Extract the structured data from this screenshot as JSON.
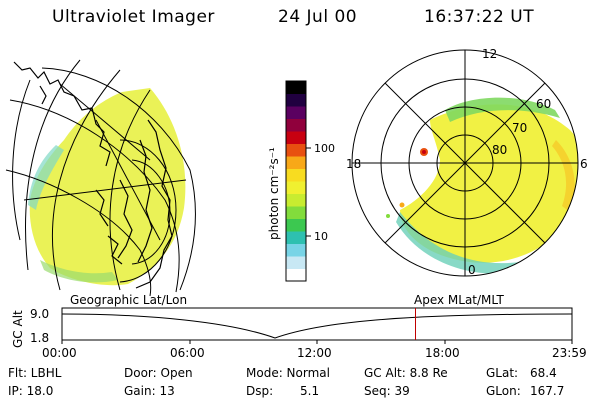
{
  "header": {
    "instrument": "Ultraviolet Imager",
    "date": "24 Jul 00",
    "time": "16:37:22 UT"
  },
  "colorbar": {
    "unit_label": "photon cm⁻²s⁻¹",
    "ticks": [
      "100",
      "10"
    ]
  },
  "polar_plot": {
    "mlt_labels": [
      "12",
      "18",
      "6",
      "0"
    ],
    "lat_labels": [
      "60",
      "70",
      "80"
    ]
  },
  "panel_labels": {
    "left": "Geographic Lat/Lon",
    "right": "Apex MLat/MLT"
  },
  "altitude_plot": {
    "axis_label": "GC Alt",
    "y_ticks": [
      "9.0",
      "1.8"
    ],
    "x_ticks": [
      "00:00",
      "06:00",
      "12:00",
      "18:00",
      "23:59"
    ],
    "current_time_marker": "16:37:22"
  },
  "status": {
    "filter": "Flt: LBHL",
    "ip": "IP: 18.0",
    "door": "Door: Open",
    "gain": "Gain: 13",
    "mode": "Mode: Normal",
    "dsp_label": "Dsp:",
    "dsp_value": "5.1",
    "gc_alt": "GC Alt: 8.8 Re",
    "seq": "Seq: 39",
    "glat_label": "GLat:",
    "glat_value": "68.4",
    "glon_label": "GLon:",
    "glon_value": "167.7"
  },
  "colors": {
    "colorbar": [
      "#ffffff",
      "#c8e8f4",
      "#78d4e6",
      "#2ec0b0",
      "#3cc850",
      "#82dc3c",
      "#c8ec30",
      "#f0f030",
      "#f8dc20",
      "#f8a818",
      "#e85010",
      "#c80010",
      "#90003c",
      "#5a0060",
      "#200040",
      "#000000"
    ],
    "marker": "#c00000"
  }
}
